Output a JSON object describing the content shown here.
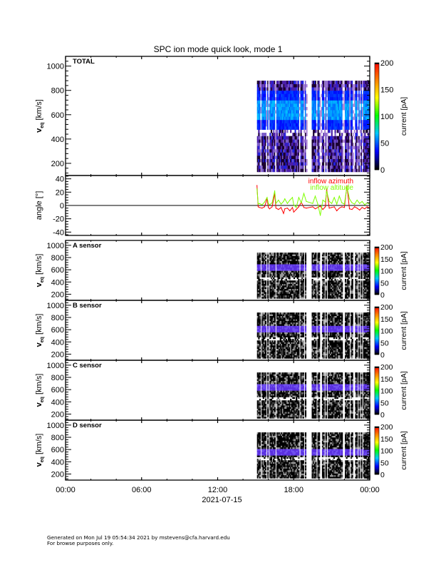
{
  "chart_data": {
    "type": "heatmap",
    "title": "SPC ion mode quick look, mode 1",
    "xaxis": {
      "ticks": [
        "00:00",
        "06:00",
        "12:00",
        "18:00",
        "00:00"
      ],
      "tick_hours": [
        0,
        6,
        12,
        18,
        24
      ],
      "minor_tick_hours": [
        2,
        4,
        8,
        10,
        14,
        16,
        20,
        22
      ],
      "label": "2021-07-15",
      "range_hours": [
        0,
        24
      ]
    },
    "data_window": {
      "start_hour": 15.1,
      "end_hour": 24.0,
      "gaps_hours": [
        [
          19.0,
          19.4
        ]
      ]
    },
    "panels": [
      {
        "id": "total",
        "kind": "spectrogram",
        "label": "TOTAL",
        "ylabel": "v_eq [km/s]",
        "ylabel_main": "v",
        "ylabel_sub": "eq",
        "ylabel_rest": "[km/s]",
        "ylim": [
          100,
          1080
        ],
        "yticks": [
          200,
          400,
          600,
          800,
          1000
        ],
        "v_range_km_s": [
          130,
          880
        ],
        "peak_v_km_s": 640,
        "colorbar": {
          "label": "current [pA]",
          "range": [
            0,
            200
          ],
          "ticks": [
            0,
            50,
            100,
            150,
            200
          ]
        }
      },
      {
        "id": "angle",
        "kind": "line",
        "ylabel": "angle [°]",
        "ylim": [
          -45,
          45
        ],
        "yticks": [
          -40,
          -20,
          0,
          20,
          40
        ],
        "zero_line": true,
        "series": [
          {
            "name": "inflow azimuth",
            "color": "#ff0000",
            "x_hours": [
              15.1,
              15.2,
              15.3,
              15.5,
              15.7,
              15.9,
              16.0,
              16.1,
              16.3,
              16.5,
              16.6,
              16.8,
              17.0,
              17.2,
              17.3,
              17.5,
              17.7,
              17.9,
              18.0,
              18.2,
              18.4,
              18.6,
              18.8,
              19.0,
              19.5,
              19.7,
              19.9,
              20.1,
              20.3,
              20.5,
              20.6,
              20.8,
              21.0,
              21.2,
              21.4,
              21.6,
              21.8,
              22.0,
              22.2,
              22.4,
              22.6,
              22.8,
              23.0,
              23.2,
              23.4,
              23.6,
              23.8,
              24.0
            ],
            "values": [
              30,
              -2,
              -3,
              -4,
              -2,
              10,
              -3,
              -5,
              -2,
              18,
              -4,
              -6,
              -3,
              -12,
              -5,
              -4,
              -8,
              -3,
              -10,
              -6,
              -2,
              5,
              -3,
              -4,
              -2,
              -5,
              -3,
              -1,
              -6,
              -2,
              25,
              -4,
              -3,
              -2,
              -8,
              -4,
              -2,
              -3,
              30,
              -5,
              -6,
              -2,
              -4,
              -7,
              -3,
              -5,
              -2,
              -4
            ]
          },
          {
            "name": "inflow altitude",
            "color": "#7fff00",
            "x_hours": [
              15.1,
              15.2,
              15.3,
              15.5,
              15.7,
              15.9,
              16.0,
              16.1,
              16.3,
              16.5,
              16.6,
              16.8,
              17.0,
              17.2,
              17.3,
              17.5,
              17.7,
              17.9,
              18.0,
              18.2,
              18.4,
              18.6,
              18.8,
              19.0,
              19.5,
              19.7,
              19.9,
              20.1,
              20.3,
              20.5,
              20.6,
              20.8,
              21.0,
              21.2,
              21.4,
              21.6,
              21.8,
              22.0,
              22.2,
              22.4,
              22.6,
              22.8,
              23.0,
              23.2,
              23.4,
              23.6,
              23.8,
              24.0
            ],
            "values": [
              25,
              2,
              3,
              1,
              5,
              12,
              3,
              1,
              4,
              22,
              3,
              8,
              2,
              6,
              10,
              3,
              8,
              12,
              1,
              -3,
              12,
              4,
              18,
              6,
              3,
              14,
              2,
              -15,
              8,
              5,
              22,
              6,
              3,
              12,
              2,
              14,
              4,
              2,
              28,
              10,
              4,
              2,
              8,
              3,
              6,
              1,
              4,
              2
            ]
          }
        ]
      },
      {
        "id": "a",
        "kind": "spectrogram",
        "label": "A sensor",
        "ylabel": "v_eq [km/s]",
        "ylabel_main": "v",
        "ylabel_sub": "eq",
        "ylabel_rest": "[km/s]",
        "ylim": [
          100,
          1080
        ],
        "yticks": [
          200,
          400,
          600,
          800,
          1000
        ],
        "v_range_km_s": [
          130,
          880
        ],
        "peak_v_km_s": 640,
        "colorbar": {
          "label": "current [pA]",
          "range": [
            0,
            200
          ],
          "ticks": [
            0,
            50,
            100,
            150,
            200
          ]
        }
      },
      {
        "id": "b",
        "kind": "spectrogram",
        "label": "B sensor",
        "ylabel": "v_eq [km/s]",
        "ylabel_main": "v",
        "ylabel_sub": "eq",
        "ylabel_rest": "[km/s]",
        "ylim": [
          100,
          1080
        ],
        "yticks": [
          200,
          400,
          600,
          800,
          1000
        ],
        "v_range_km_s": [
          130,
          880
        ],
        "peak_v_km_s": 620,
        "colorbar": {
          "label": "current [pA]",
          "range": [
            0,
            200
          ],
          "ticks": [
            0,
            50,
            100,
            150,
            200
          ]
        }
      },
      {
        "id": "c",
        "kind": "spectrogram",
        "label": "C sensor",
        "ylabel": "v_eq [km/s]",
        "ylabel_main": "v",
        "ylabel_sub": "eq",
        "ylabel_rest": "[km/s]",
        "ylim": [
          100,
          1080
        ],
        "yticks": [
          200,
          400,
          600,
          800,
          1000
        ],
        "v_range_km_s": [
          130,
          880
        ],
        "peak_v_km_s": 640,
        "colorbar": {
          "label": "current [pA]",
          "range": [
            0,
            200
          ],
          "ticks": [
            0,
            50,
            100,
            150,
            200
          ]
        }
      },
      {
        "id": "d",
        "kind": "spectrogram",
        "label": "D sensor",
        "ylabel": "v_eq [km/s]",
        "ylabel_main": "v",
        "ylabel_sub": "eq",
        "ylabel_rest": "[km/s]",
        "ylim": [
          100,
          1080
        ],
        "yticks": [
          200,
          400,
          600,
          800,
          1000
        ],
        "v_range_km_s": [
          130,
          880
        ],
        "peak_v_km_s": 560,
        "colorbar": {
          "label": "current [pA]",
          "range": [
            0,
            200
          ],
          "ticks": [
            0,
            50,
            100,
            150,
            200
          ]
        }
      }
    ],
    "colorscale": [
      "#000000",
      "#0000ff",
      "#00c8ff",
      "#00ff00",
      "#ffff00",
      "#ff8000",
      "#ff0000"
    ]
  },
  "footer": {
    "line1": "Generated on Mon Jul 19 05:54:34 2021 by mstevens@cfa.harvard.edu",
    "line2": "For browse purposes only."
  }
}
